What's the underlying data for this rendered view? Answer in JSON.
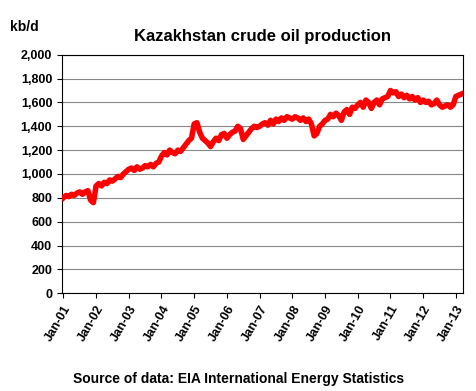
{
  "chart_data": {
    "type": "line",
    "title": "Kazakhstan crude oil production",
    "y_label": "kb/d",
    "annotations": [
      "Source of data: EIA International Energy Statistics"
    ],
    "categories": [
      "Jan-01",
      null,
      null,
      null,
      null,
      null,
      null,
      null,
      null,
      null,
      null,
      null,
      "Jan-02",
      null,
      null,
      null,
      null,
      null,
      null,
      null,
      null,
      null,
      null,
      null,
      "Jan-03",
      null,
      null,
      null,
      null,
      null,
      null,
      null,
      null,
      null,
      null,
      null,
      "Jan-04",
      null,
      null,
      null,
      null,
      null,
      null,
      null,
      null,
      null,
      null,
      null,
      "Jan-05",
      null,
      null,
      null,
      null,
      null,
      null,
      null,
      null,
      null,
      null,
      null,
      "Jan-06",
      null,
      null,
      null,
      null,
      null,
      null,
      null,
      null,
      null,
      null,
      null,
      "Jan-07",
      null,
      null,
      null,
      null,
      null,
      null,
      null,
      null,
      null,
      null,
      null,
      "Jan-08",
      null,
      null,
      null,
      null,
      null,
      null,
      null,
      null,
      null,
      null,
      null,
      "Jan-09",
      null,
      null,
      null,
      null,
      null,
      null,
      null,
      null,
      null,
      null,
      null,
      "Jan-10",
      null,
      null,
      null,
      null,
      null,
      null,
      null,
      null,
      null,
      null,
      null,
      "Jan-11",
      null,
      null,
      null,
      null,
      null,
      null,
      null,
      null,
      null,
      null,
      null,
      "Jan-12",
      null,
      null,
      null,
      null,
      null,
      null,
      null,
      null,
      null,
      null,
      null,
      "Jan-13",
      null,
      null
    ],
    "values": [
      800,
      820,
      810,
      830,
      820,
      840,
      850,
      830,
      850,
      860,
      780,
      760,
      900,
      920,
      900,
      930,
      920,
      950,
      940,
      960,
      980,
      970,
      1000,
      1020,
      1040,
      1050,
      1030,
      1060,
      1040,
      1050,
      1070,
      1060,
      1080,
      1060,
      1090,
      1100,
      1150,
      1180,
      1160,
      1200,
      1180,
      1170,
      1200,
      1190,
      1220,
      1250,
      1280,
      1300,
      1420,
      1430,
      1350,
      1300,
      1280,
      1260,
      1230,
      1270,
      1300,
      1280,
      1330,
      1340,
      1300,
      1330,
      1350,
      1360,
      1400,
      1380,
      1290,
      1320,
      1350,
      1380,
      1400,
      1390,
      1400,
      1420,
      1430,
      1410,
      1450,
      1420,
      1460,
      1440,
      1470,
      1450,
      1480,
      1470,
      1460,
      1480,
      1470,
      1450,
      1470,
      1440,
      1460,
      1420,
      1320,
      1340,
      1400,
      1420,
      1450,
      1460,
      1500,
      1480,
      1510,
      1490,
      1450,
      1520,
      1540,
      1500,
      1560,
      1550,
      1580,
      1600,
      1560,
      1620,
      1600,
      1550,
      1600,
      1620,
      1580,
      1630,
      1640,
      1650,
      1700,
      1680,
      1690,
      1650,
      1670,
      1640,
      1660,
      1630,
      1650,
      1620,
      1640,
      1600,
      1620,
      1600,
      1610,
      1580,
      1590,
      1620,
      1580,
      1560,
      1570,
      1580,
      1560,
      1580,
      1650,
      1660,
      1670
    ],
    "color": "#ff0000",
    "ylim": [
      0,
      2000
    ],
    "yticks": [
      0,
      200,
      400,
      600,
      800,
      {
        "value": 1000,
        "label": "1,000"
      },
      {
        "value": 1200,
        "label": "1,200"
      },
      {
        "value": 1400,
        "label": "1,400"
      },
      {
        "value": 1600,
        "label": "1,600"
      },
      {
        "value": 1800,
        "label": "1,800"
      },
      {
        "value": 2000,
        "label": "2,000"
      }
    ],
    "grid": true
  }
}
